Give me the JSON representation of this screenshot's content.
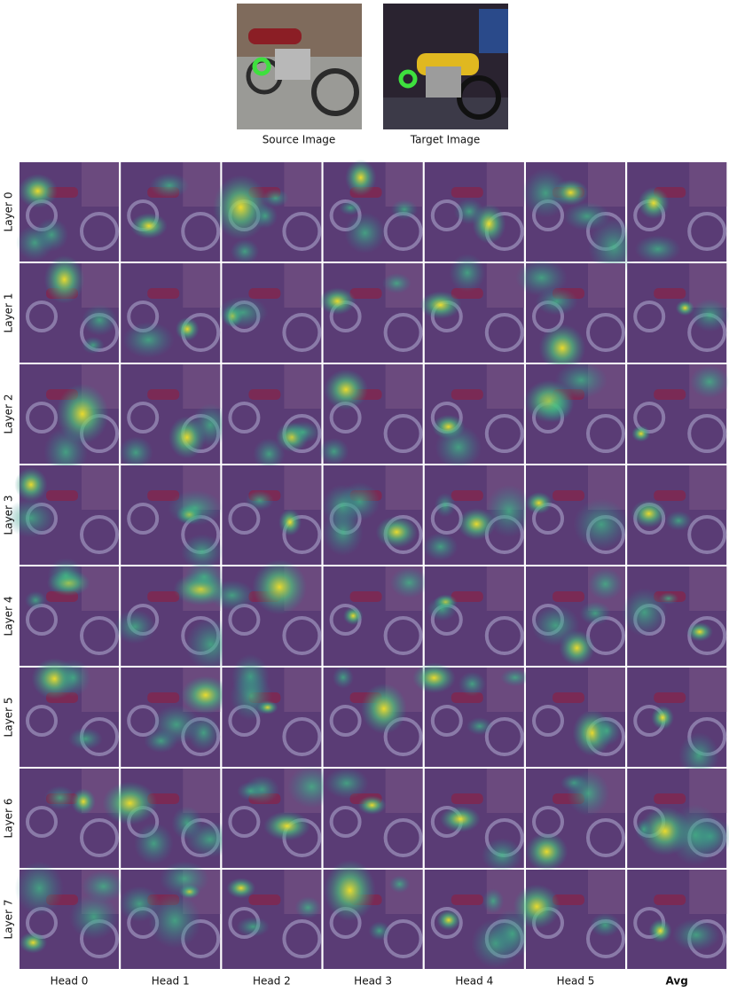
{
  "figure": {
    "source_label": "Source Image",
    "target_label": "Target Image",
    "rows": [
      "Layer 0",
      "Layer 1",
      "Layer 2",
      "Layer 3",
      "Layer 4",
      "Layer 5",
      "Layer 6",
      "Layer 7"
    ],
    "columns": [
      "Head 0",
      "Head 1",
      "Head 2",
      "Head 3",
      "Head 4",
      "Head 5",
      "Avg"
    ]
  }
}
